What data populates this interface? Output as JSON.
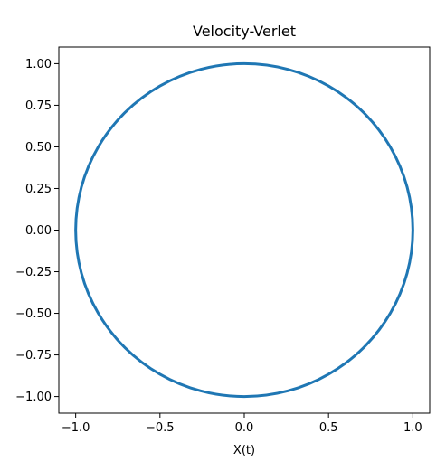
{
  "chart_data": {
    "type": "line",
    "title": "Velocity-Verlet",
    "xlabel": "X(t)",
    "ylabel": "",
    "xlim": [
      -1.1,
      1.1
    ],
    "ylim": [
      -1.1,
      1.1
    ],
    "grid": false,
    "x_ticks": [
      -1.0,
      -0.5,
      0.0,
      0.5,
      1.0
    ],
    "x_tick_labels": [
      "−1.0",
      "−0.5",
      "0.0",
      "0.5",
      "1.0"
    ],
    "y_ticks": [
      1.0,
      0.75,
      0.5,
      0.25,
      0.0,
      -0.25,
      -0.5,
      -0.75,
      -1.0
    ],
    "y_tick_labels": [
      "1.00",
      "0.75",
      "0.50",
      "0.25",
      "0.00",
      "−0.25",
      "−0.50",
      "−0.75",
      "−1.00"
    ],
    "series": [
      {
        "color": "#1f77b4",
        "x": [
          1.0,
          0.966,
          0.866,
          0.707,
          0.5,
          0.259,
          0.0,
          -0.259,
          -0.5,
          -0.707,
          -0.866,
          -0.966,
          -1.0,
          -0.966,
          -0.866,
          -0.707,
          -0.5,
          -0.259,
          0.0,
          0.259,
          0.5,
          0.707,
          0.866,
          0.966,
          1.0
        ],
        "y": [
          0.0,
          0.259,
          0.5,
          0.707,
          0.866,
          0.966,
          1.0,
          0.966,
          0.866,
          0.707,
          0.5,
          0.259,
          0.0,
          -0.259,
          -0.5,
          -0.707,
          -0.866,
          -0.966,
          -1.0,
          -0.966,
          -0.866,
          -0.707,
          -0.5,
          -0.259,
          0.0
        ]
      }
    ]
  }
}
